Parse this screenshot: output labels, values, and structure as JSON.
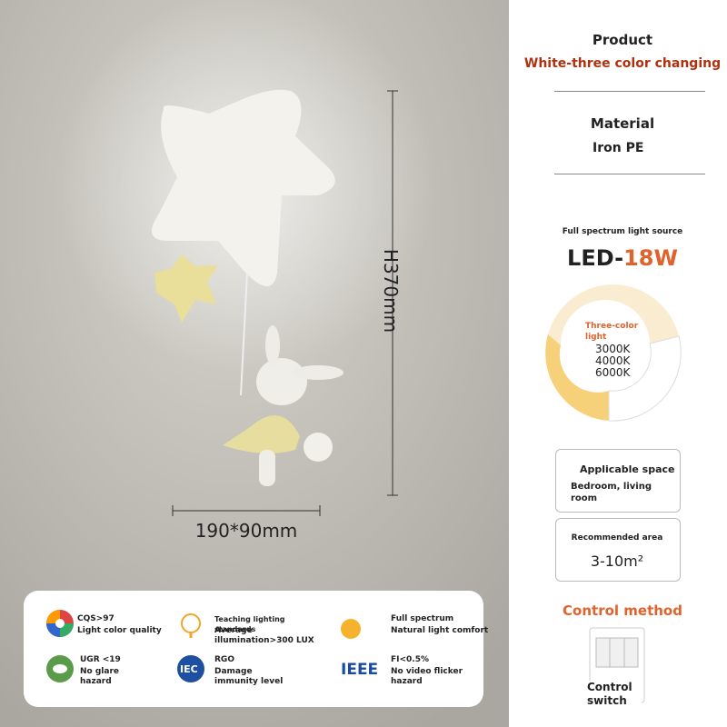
{
  "dimensions": {
    "height": "H370mm",
    "width": "190*90mm"
  },
  "specs": {
    "product": {
      "label": "Product",
      "value": "White-three color changing"
    },
    "material": {
      "label": "Material",
      "value": "Iron PE"
    },
    "light_source": {
      "caption": "Full spectrum light source",
      "prefix": "LED-",
      "power": "18W",
      "ring_title": "Three-color light",
      "temperatures": [
        "3000K",
        "4000K",
        "6000K"
      ]
    },
    "space": {
      "label": "Applicable space",
      "value": "Bedroom, living room"
    },
    "area": {
      "label": "Recommended area",
      "value": "3-10m²"
    },
    "control": {
      "title": "Control method",
      "label": "Control switch"
    }
  },
  "features": [
    {
      "title": "CQS>97",
      "desc": "Light color quality"
    },
    {
      "title": "Teaching lighting standards",
      "desc": "Average illumination>300 LUX"
    },
    {
      "title": "Full spectrum",
      "desc": "Natural light comfort"
    },
    {
      "title": "UGR <19",
      "desc": "No glare hazard"
    },
    {
      "title": "RGO",
      "desc": "Damage immunity level",
      "icon": "IEC"
    },
    {
      "title": "FI<0.5%",
      "desc": "No video flicker hazard",
      "icon": "IEEE"
    }
  ]
}
